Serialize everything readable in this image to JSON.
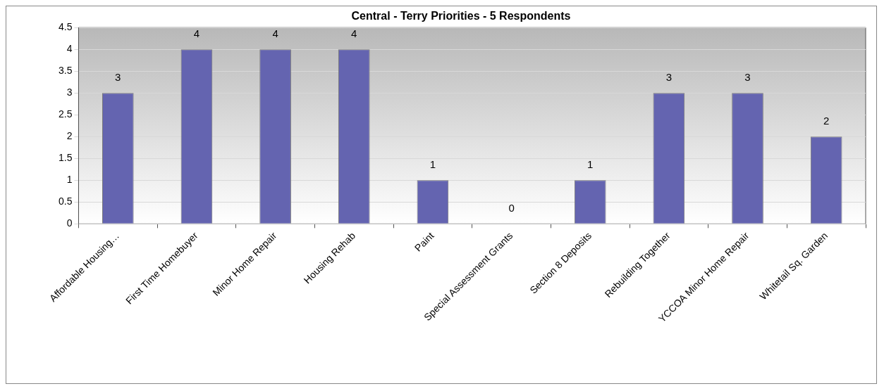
{
  "chart_data": {
    "type": "bar",
    "title": "Central - Terry Priorities - 5 Respondents",
    "categories": [
      "Affordable Housing…",
      "First Time Homebuyer",
      "Minor Home Repair",
      "Housing Rehab",
      "Paint",
      "Special Assessment Grants",
      "Section 8 Deposits",
      "Rebuilding Together",
      "YCCOA Minor Home Repair",
      "Whitetail Sq. Garden"
    ],
    "values": [
      3,
      4,
      4,
      4,
      1,
      0,
      1,
      3,
      3,
      2
    ],
    "color": "#6464b0",
    "ylim": [
      0,
      4.5
    ],
    "yticks": [
      0,
      0.5,
      1,
      1.5,
      2,
      2.5,
      3,
      3.5,
      4,
      4.5
    ],
    "grid": "y",
    "data_labels": true
  }
}
